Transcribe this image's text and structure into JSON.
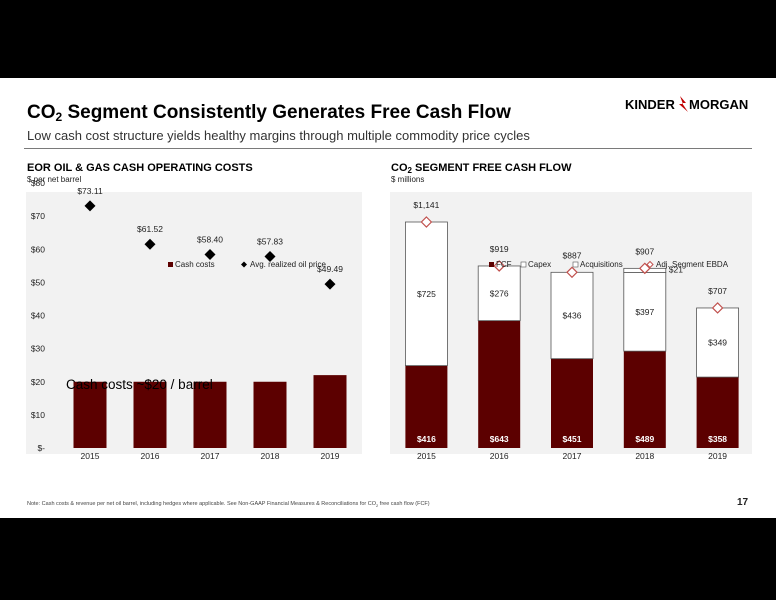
{
  "slide": {
    "title_main": "CO",
    "title_sub": "2",
    "title_rest": " Segment Consistently Generates Free Cash Flow",
    "subtitle": "Low cash cost structure yields healthy margins through multiple commodity price cycles",
    "logo_left": "KINDER",
    "logo_right": "MORGAN",
    "footnote_main": "Note: Cash costs & revenue per net oil barrel, including hedges where applicable. See Non-GAAP Financial Measures & Reconciliations for CO",
    "footnote_sub": "2",
    "footnote_rest": " free cash flow (FCF)",
    "page_number": "17",
    "brand_color": "#5c0000"
  },
  "left_panel": {
    "title": "EOR OIL & GAS CASH OPERATING COSTS",
    "units": "$ per net barrel",
    "annotation": "Cash costs ~$20 / barrel"
  },
  "right_panel": {
    "title_main": "CO",
    "title_sub": "2",
    "title_rest": " SEGMENT FREE CASH FLOW",
    "units": "$ millions"
  },
  "chart_data": [
    {
      "type": "bar",
      "categories": [
        "2015",
        "2016",
        "2017",
        "2018",
        "2019"
      ],
      "series": [
        {
          "name": "Cash costs",
          "kind": "bar",
          "values": [
            20,
            20,
            20,
            20,
            22
          ],
          "color": "#5c0000"
        },
        {
          "name": "Avg. realized oil price",
          "kind": "marker",
          "marker": "diamond",
          "values": [
            73.11,
            61.52,
            58.4,
            57.83,
            49.49
          ],
          "labels": [
            "$73.11",
            "$61.52",
            "$58.40",
            "$57.83",
            "$49.49"
          ],
          "color": "#000000"
        }
      ],
      "ylim": [
        0,
        80
      ],
      "yticks": [
        0,
        10,
        20,
        30,
        40,
        50,
        60,
        70,
        80
      ],
      "ytick_labels": [
        "$-",
        "$10",
        "$20",
        "$30",
        "$40",
        "$50",
        "$60",
        "$70",
        "$80"
      ],
      "legend_position": "top-right",
      "grid": false
    },
    {
      "type": "bar",
      "stacked": true,
      "categories": [
        "2015",
        "2016",
        "2017",
        "2018",
        "2019"
      ],
      "series": [
        {
          "name": "FCF",
          "values": [
            416,
            643,
            451,
            489,
            358
          ],
          "labels": [
            "$416",
            "$643",
            "$451",
            "$489",
            "$358"
          ],
          "color": "#5c0000"
        },
        {
          "name": "Capex",
          "values": [
            725,
            276,
            436,
            397,
            349
          ],
          "labels": [
            "$725",
            "$276",
            "$436",
            "$397",
            "$349"
          ],
          "color": "#ffffff"
        },
        {
          "name": "Acquisitions",
          "values": [
            0,
            0,
            0,
            21,
            0
          ],
          "labels": [
            "",
            "",
            "",
            "$21",
            ""
          ],
          "color": "#ffffff"
        },
        {
          "name": "Adj. Segment EBDA",
          "kind": "marker",
          "marker": "diamond-open",
          "values": [
            1141,
            919,
            887,
            907,
            707
          ],
          "labels": [
            "$1,141",
            "$919",
            "$887",
            "$907",
            "$707"
          ],
          "color": "#c0504d"
        }
      ],
      "ylim": [
        0,
        1250
      ],
      "legend_position": "top",
      "grid": false
    }
  ]
}
